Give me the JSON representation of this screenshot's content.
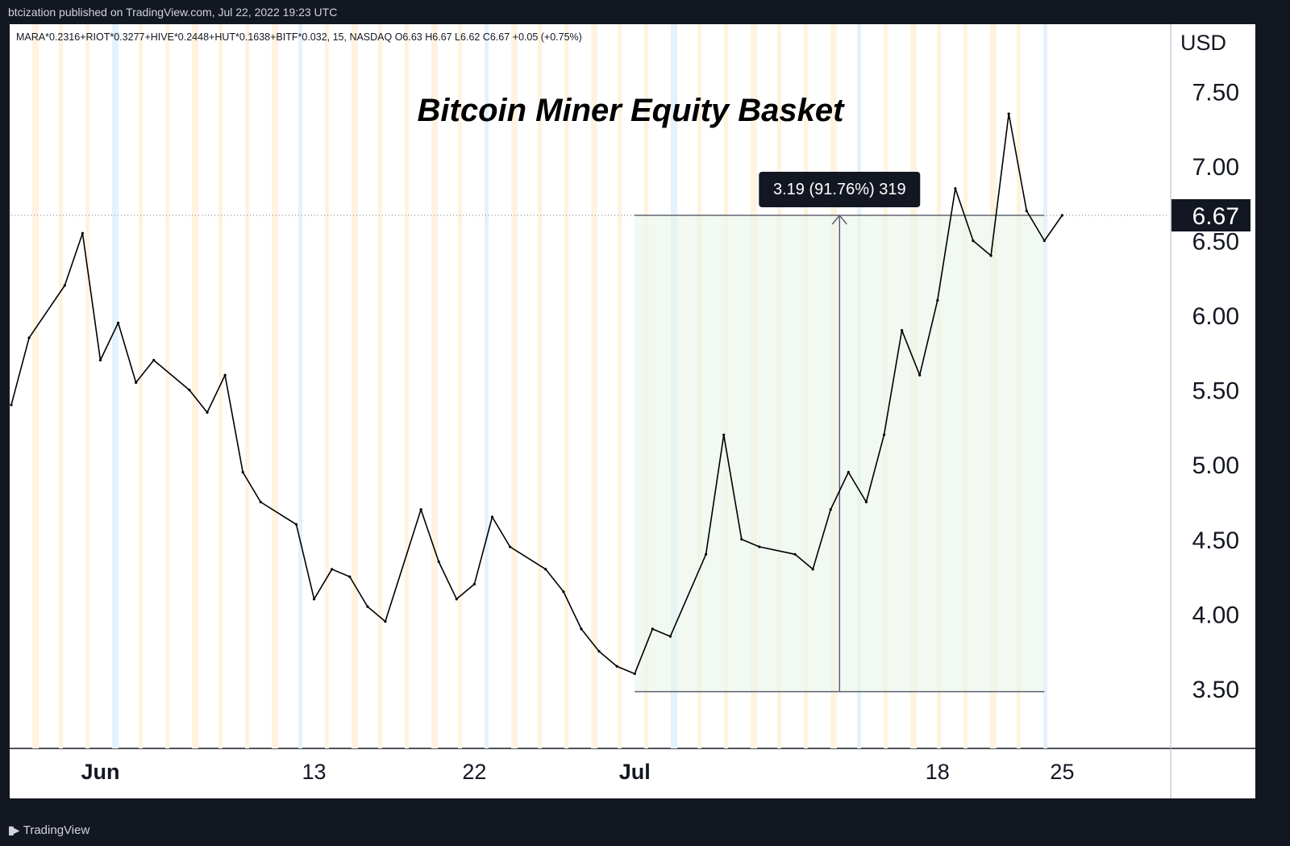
{
  "header": {
    "published_text": "btcization published on TradingView.com, Jul 22, 2022 19:23 UTC"
  },
  "footer": {
    "brand_logo": "tradingview-logo-icon",
    "brand_label": "TradingView"
  },
  "legend": {
    "symbol_line": "MARA*0.2316+RIOT*0.3277+HIVE*0.2448+HUT*0.1638+BITF*0.032, 15, NASDAQ  O6.63  H6.67  L6.62  C6.67  +0.05 (+0.75%)"
  },
  "colors": {
    "background": "#131722",
    "pane": "#ffffff",
    "price_line": "#000000",
    "highlight_band": "#fff3e0",
    "highlight_band_alt": "#e3f2fd",
    "measure_fill": "#e8f5e9",
    "measure_line": "#5d606b"
  },
  "chart_data": {
    "type": "line",
    "title": "Bitcoin Miner Equity Basket",
    "currency_label": "USD",
    "y_ticks": [
      7.5,
      7.0,
      6.5,
      6.0,
      5.5,
      5.0,
      4.5,
      4.0,
      3.5
    ],
    "y_tick_labels": [
      "7.50",
      "7.00",
      "6.50",
      "6.00",
      "5.50",
      "5.00",
      "4.50",
      "4.00",
      "3.50"
    ],
    "ylim": [
      3.1,
      7.95
    ],
    "x_ticks": [
      {
        "label": "Jun",
        "date": "2022-06-01",
        "bold": true
      },
      {
        "label": "13",
        "date": "2022-06-13",
        "bold": false
      },
      {
        "label": "22",
        "date": "2022-06-22",
        "bold": false
      },
      {
        "label": "Jul",
        "date": "2022-07-01",
        "bold": true
      },
      {
        "label": "18",
        "date": "2022-07-18",
        "bold": false
      },
      {
        "label": "25",
        "date": "2022-07-25",
        "bold": false
      }
    ],
    "xlim": [
      "2022-05-27",
      "2022-07-31"
    ],
    "last_price": "6.67",
    "series": [
      {
        "x": [
          "2022-05-27",
          "2022-05-28",
          "2022-05-30",
          "2022-05-31",
          "2022-06-01",
          "2022-06-02",
          "2022-06-03",
          "2022-06-04",
          "2022-06-06",
          "2022-06-07",
          "2022-06-08",
          "2022-06-09",
          "2022-06-10",
          "2022-06-12",
          "2022-06-13",
          "2022-06-14",
          "2022-06-15",
          "2022-06-16",
          "2022-06-17",
          "2022-06-19",
          "2022-06-20",
          "2022-06-21",
          "2022-06-22",
          "2022-06-23",
          "2022-06-24",
          "2022-06-26",
          "2022-06-27",
          "2022-06-28",
          "2022-06-29",
          "2022-06-30",
          "2022-07-01",
          "2022-07-02",
          "2022-07-03",
          "2022-07-05",
          "2022-07-06",
          "2022-07-07",
          "2022-07-08",
          "2022-07-10",
          "2022-07-11",
          "2022-07-12",
          "2022-07-13",
          "2022-07-14",
          "2022-07-15",
          "2022-07-16",
          "2022-07-17",
          "2022-07-18",
          "2022-07-19",
          "2022-07-20",
          "2022-07-21",
          "2022-07-22",
          "2022-07-23",
          "2022-07-24",
          "2022-07-25"
        ],
        "y": [
          5.4,
          5.85,
          6.2,
          6.55,
          5.7,
          5.95,
          5.55,
          5.7,
          5.5,
          5.35,
          5.6,
          4.95,
          4.75,
          4.6,
          4.1,
          4.3,
          4.25,
          4.05,
          3.95,
          4.7,
          4.35,
          4.1,
          4.2,
          4.65,
          4.45,
          4.3,
          4.15,
          3.9,
          3.75,
          3.65,
          3.6,
          3.9,
          3.85,
          4.4,
          5.2,
          4.5,
          4.45,
          4.4,
          4.3,
          4.7,
          4.95,
          4.75,
          5.2,
          5.9,
          5.6,
          6.1,
          6.85,
          6.5,
          6.4,
          7.35,
          6.7,
          6.5,
          6.67
        ]
      }
    ],
    "measure": {
      "label": "3.19 (91.76%) 319",
      "from_price": 3.48,
      "to_price": 6.67,
      "from_date": "2022-07-01",
      "to_date": "2022-07-24"
    }
  }
}
